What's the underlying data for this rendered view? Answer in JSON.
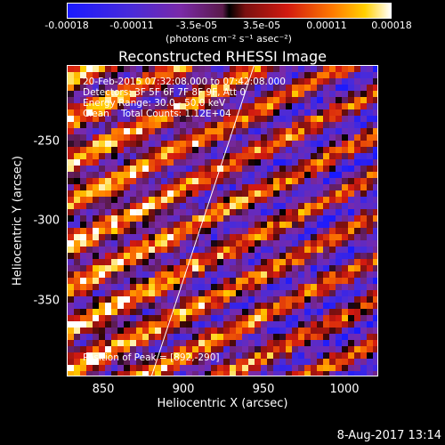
{
  "colorbar": {
    "ticks": [
      "-0.00018",
      "-0.00011",
      "-3.5e-05",
      "3.5e-05",
      "0.00011",
      "0.00018"
    ],
    "units": "(photons cm⁻² s⁻¹ asec⁻²)"
  },
  "chart_data": {
    "type": "heatmap",
    "title": "Reconstructed RHESSI Image",
    "xlabel": "Heliocentric X (arcsec)",
    "ylabel": "Heliocentric Y (arcsec)",
    "xlim": [
      828,
      1022
    ],
    "ylim": [
      -397,
      -203
    ],
    "x_ticks": [
      850,
      900,
      950,
      1000
    ],
    "y_ticks": [
      -250,
      -300,
      -350
    ],
    "color_range": [
      -0.00018,
      0.00018
    ],
    "limb_line": [
      [
        880,
        -397
      ],
      [
        944,
        -203
      ]
    ],
    "annotations": {
      "time": "20-Feb-2015 07:32:08.000 to 07:42:08.000",
      "detectors": "Detectors: 3F 5F 6F 7F 8F 9F, Att 0",
      "energy": "Energy Range: 30.0 - 50.0 keV",
      "method": "Clean    Total Counts: 1.12E+04",
      "peak": "Position of Peak = [892,-290]"
    }
  },
  "footer": {
    "date": "8-Aug-2017 13:14"
  }
}
